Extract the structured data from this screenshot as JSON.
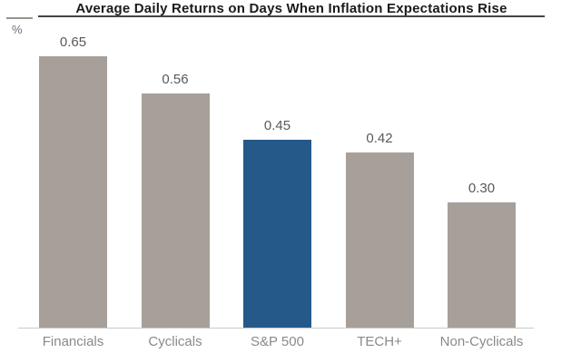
{
  "title": "Average Daily Returns on Days When Inflation Expectations Rise",
  "unit_label": "%",
  "colors": {
    "bar_default": "#a7a09a",
    "bar_highlight": "#25598a",
    "title_text": "#1b1b1b",
    "title_underline": "#454545",
    "axis_line": "#c9c9c9",
    "value_label": "#595959",
    "category_label": "#8a8a8a"
  },
  "chart_data": {
    "type": "bar",
    "title": "Average Daily Returns on Days When Inflation Expectations Rise",
    "categories": [
      "Financials",
      "Cyclicals",
      "S&P 500",
      "TECH+",
      "Non-Cyclicals"
    ],
    "values": [
      0.65,
      0.56,
      0.45,
      0.42,
      0.3
    ],
    "value_labels": [
      "0.65",
      "0.56",
      "0.45",
      "0.42",
      "0.30"
    ],
    "highlight_category": "S&P 500",
    "xlabel": "",
    "ylabel": "%",
    "ylim": [
      0,
      0.78
    ],
    "grid": false,
    "legend": "none",
    "data_labels": true
  }
}
